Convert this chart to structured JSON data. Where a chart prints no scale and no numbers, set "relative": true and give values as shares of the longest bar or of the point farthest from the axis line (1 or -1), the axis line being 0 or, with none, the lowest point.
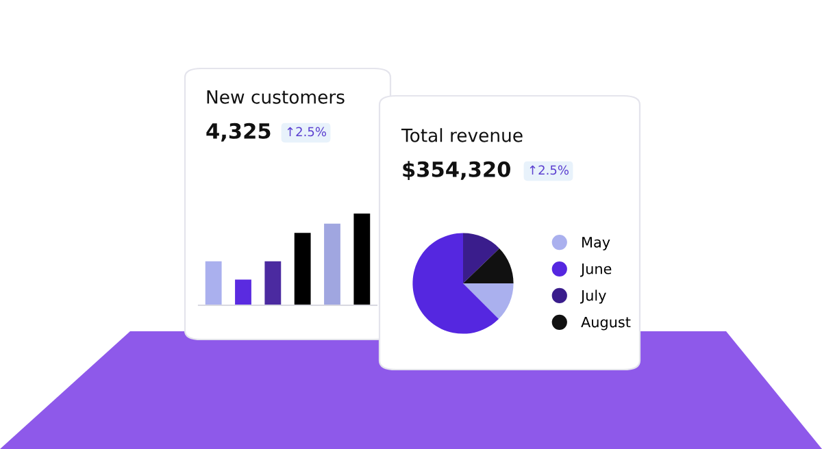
{
  "chart_data": [
    {
      "type": "bar",
      "title": "New customers",
      "subtitle": "4,325",
      "annotations": [
        "↑2.5%"
      ],
      "relative": true,
      "categories": [
        null,
        null,
        null,
        null,
        null,
        null
      ],
      "values": [
        0.48,
        0.28,
        0.48,
        0.79,
        0.89,
        1
      ],
      "colors": [
        "#aab0ee",
        "#5a2be0",
        "#4b2aa0",
        "#000000",
        "#a0a6e0",
        "#000000"
      ],
      "grid": false
    },
    {
      "type": "pie",
      "title": "Total revenue",
      "subtitle": "$354,320",
      "annotations": [
        "↑2.5%"
      ],
      "categories": [
        "May",
        "June",
        "July",
        "August"
      ],
      "values": [
        12.5,
        62.5,
        12.8,
        12.2
      ],
      "colors": [
        "#aab0ee",
        "#5527e0",
        "#3a1d8c",
        "#111111"
      ],
      "legend": "right"
    }
  ]
}
